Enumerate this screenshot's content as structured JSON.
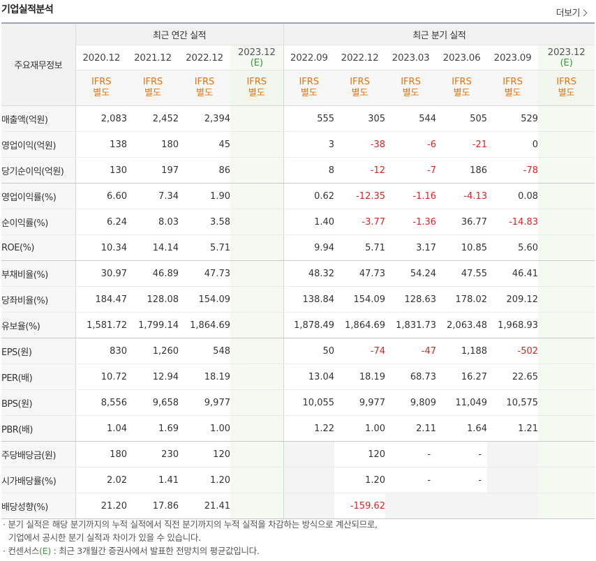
{
  "header": {
    "title": "기업실적분석",
    "more_label": "더보기"
  },
  "table": {
    "row_header_label": "주요재무정보",
    "annual_group_label": "최근 연간 실적",
    "quarter_group_label": "최근 분기 실적",
    "ifrs_line1": "IFRS",
    "ifrs_line2": "별도",
    "annual_periods": [
      "2020.12",
      "2021.12",
      "2022.12"
    ],
    "annual_estimate": {
      "period": "2023.12",
      "mark": "(E)"
    },
    "quarter_periods": [
      "2022.09",
      "2022.12",
      "2023.03",
      "2023.06",
      "2023.09"
    ],
    "quarter_estimate": {
      "period": "2023.12",
      "mark": "(E)"
    },
    "rows": [
      {
        "label": "매출액(억원)",
        "annual": [
          "2,083",
          "2,452",
          "2,394"
        ],
        "quarter": [
          "555",
          "305",
          "544",
          "505",
          "529"
        ]
      },
      {
        "label": "영업이익(억원)",
        "annual": [
          "138",
          "180",
          "45"
        ],
        "quarter": [
          "3",
          "-38",
          "-6",
          "-21",
          "0"
        ]
      },
      {
        "label": "당기순이익(억원)",
        "annual": [
          "130",
          "197",
          "86"
        ],
        "quarter": [
          "8",
          "-12",
          "-7",
          "186",
          "-78"
        ]
      },
      {
        "label": "영업이익률(%)",
        "annual": [
          "6.60",
          "7.34",
          "1.90"
        ],
        "quarter": [
          "0.62",
          "-12.35",
          "-1.16",
          "-4.13",
          "0.08"
        ]
      },
      {
        "label": "순이익률(%)",
        "annual": [
          "6.24",
          "8.03",
          "3.58"
        ],
        "quarter": [
          "1.40",
          "-3.77",
          "-1.36",
          "36.77",
          "-14.83"
        ]
      },
      {
        "label": "ROE(%)",
        "annual": [
          "10.34",
          "14.14",
          "5.71"
        ],
        "quarter": [
          "9.94",
          "5.71",
          "3.17",
          "10.85",
          "5.60"
        ]
      },
      {
        "label": "부채비율(%)",
        "annual": [
          "30.97",
          "46.89",
          "47.73"
        ],
        "quarter": [
          "48.32",
          "47.73",
          "54.24",
          "47.55",
          "46.41"
        ]
      },
      {
        "label": "당좌비율(%)",
        "annual": [
          "184.47",
          "128.08",
          "154.09"
        ],
        "quarter": [
          "138.84",
          "154.09",
          "128.63",
          "178.02",
          "209.12"
        ]
      },
      {
        "label": "유보율(%)",
        "annual": [
          "1,581.72",
          "1,799.14",
          "1,864.69"
        ],
        "quarter": [
          "1,878.49",
          "1,864.69",
          "1,831.73",
          "2,063.48",
          "1,968.93"
        ]
      },
      {
        "label": "EPS(원)",
        "annual": [
          "830",
          "1,260",
          "548"
        ],
        "quarter": [
          "50",
          "-74",
          "-47",
          "1,188",
          "-502"
        ]
      },
      {
        "label": "PER(배)",
        "annual": [
          "10.72",
          "12.94",
          "18.19"
        ],
        "quarter": [
          "13.04",
          "18.19",
          "68.73",
          "16.27",
          "22.65"
        ]
      },
      {
        "label": "BPS(원)",
        "annual": [
          "8,556",
          "9,658",
          "9,977"
        ],
        "quarter": [
          "10,055",
          "9,977",
          "9,809",
          "11,049",
          "10,575"
        ]
      },
      {
        "label": "PBR(배)",
        "annual": [
          "1.04",
          "1.69",
          "1.00"
        ],
        "quarter": [
          "1.22",
          "1.00",
          "2.11",
          "1.64",
          "1.21"
        ]
      },
      {
        "label": "주당배당금(원)",
        "annual": [
          "180",
          "230",
          "120"
        ],
        "quarter": [
          "",
          "120",
          "-",
          "-",
          ""
        ]
      },
      {
        "label": "시가배당률(%)",
        "annual": [
          "2.02",
          "1.41",
          "1.20"
        ],
        "quarter": [
          "",
          "1.20",
          "-",
          "-",
          ""
        ]
      },
      {
        "label": "배당성향(%)",
        "annual": [
          "21.20",
          "17.86",
          "21.41"
        ],
        "quarter": [
          "",
          "-159.62",
          "",
          "",
          ""
        ]
      }
    ]
  },
  "notes": {
    "line1": "분기 실적은 해당 분기까지의 누적 실적에서 직전 분기까지의 누적 실적을 차감하는 방식으로 계산되므로,",
    "line2": "기업에서 공시한 분기 실적과 차이가 있을 수 있습니다.",
    "line3_prefix": "컨센서스",
    "line3_mark": "(E)",
    "line3_rest": ": 최근 3개월간 증권사에서 발표한 전망치의 평균값입니다."
  },
  "colors": {
    "negative": "#e02020",
    "ifrs": "#e8710a",
    "estimate_mark": "#3a9a3a"
  }
}
